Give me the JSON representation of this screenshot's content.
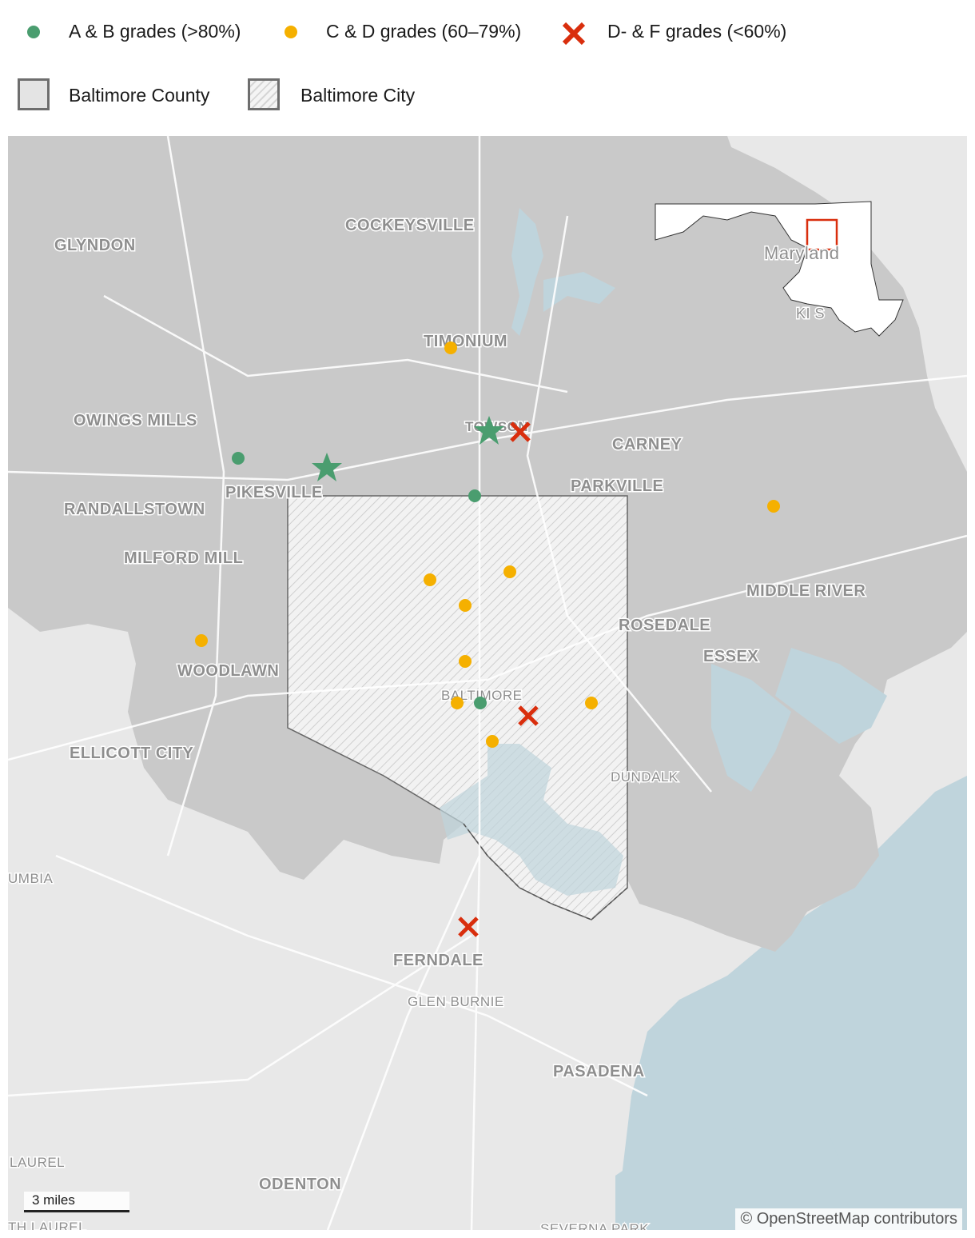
{
  "legend": {
    "grades": [
      {
        "label": "A & B grades (>80%)",
        "color": "#4a9d6f",
        "symbol": "circle"
      },
      {
        "label": "C & D grades (60–79%)",
        "color": "#f5b000",
        "symbol": "circle"
      },
      {
        "label": "D- & F grades (<60%)",
        "color": "#d92e0d",
        "symbol": "x"
      }
    ],
    "areas": [
      {
        "label": "Baltimore County",
        "style": "solid-gray"
      },
      {
        "label": "Baltimore City",
        "style": "hatched"
      }
    ]
  },
  "map": {
    "places": [
      "COCKEYSVILLE",
      "GLYNDON",
      "TIMONIUM",
      "OWINGS MILLS",
      "TOWSON",
      "CARNEY",
      "PIKESVILLE",
      "PARKVILLE",
      "RANDALLSTOWN",
      "MILFORD MILL",
      "MIDDLE RIVER",
      "ROSEDALE",
      "ESSEX",
      "WOODLAWN",
      "BALTIMORE",
      "ELLICOTT CITY",
      "DUNDALK",
      "UMBIA",
      "FERNDALE",
      "GLEN BURNIE",
      "PASADENA",
      "LAUREL",
      "ODENTON",
      "TH LAUREL",
      "SEVERNA PARK"
    ],
    "inset": {
      "label": "Maryland",
      "sub": "KI   S"
    },
    "scale_label": "3 miles",
    "attribution": "© OpenStreetMap contributors",
    "colors": {
      "water": "#bfd4dc",
      "county": "#c9c9c9",
      "land": "#e6e6e6",
      "city_border": "#666666",
      "star": "#4a9d6f"
    }
  }
}
